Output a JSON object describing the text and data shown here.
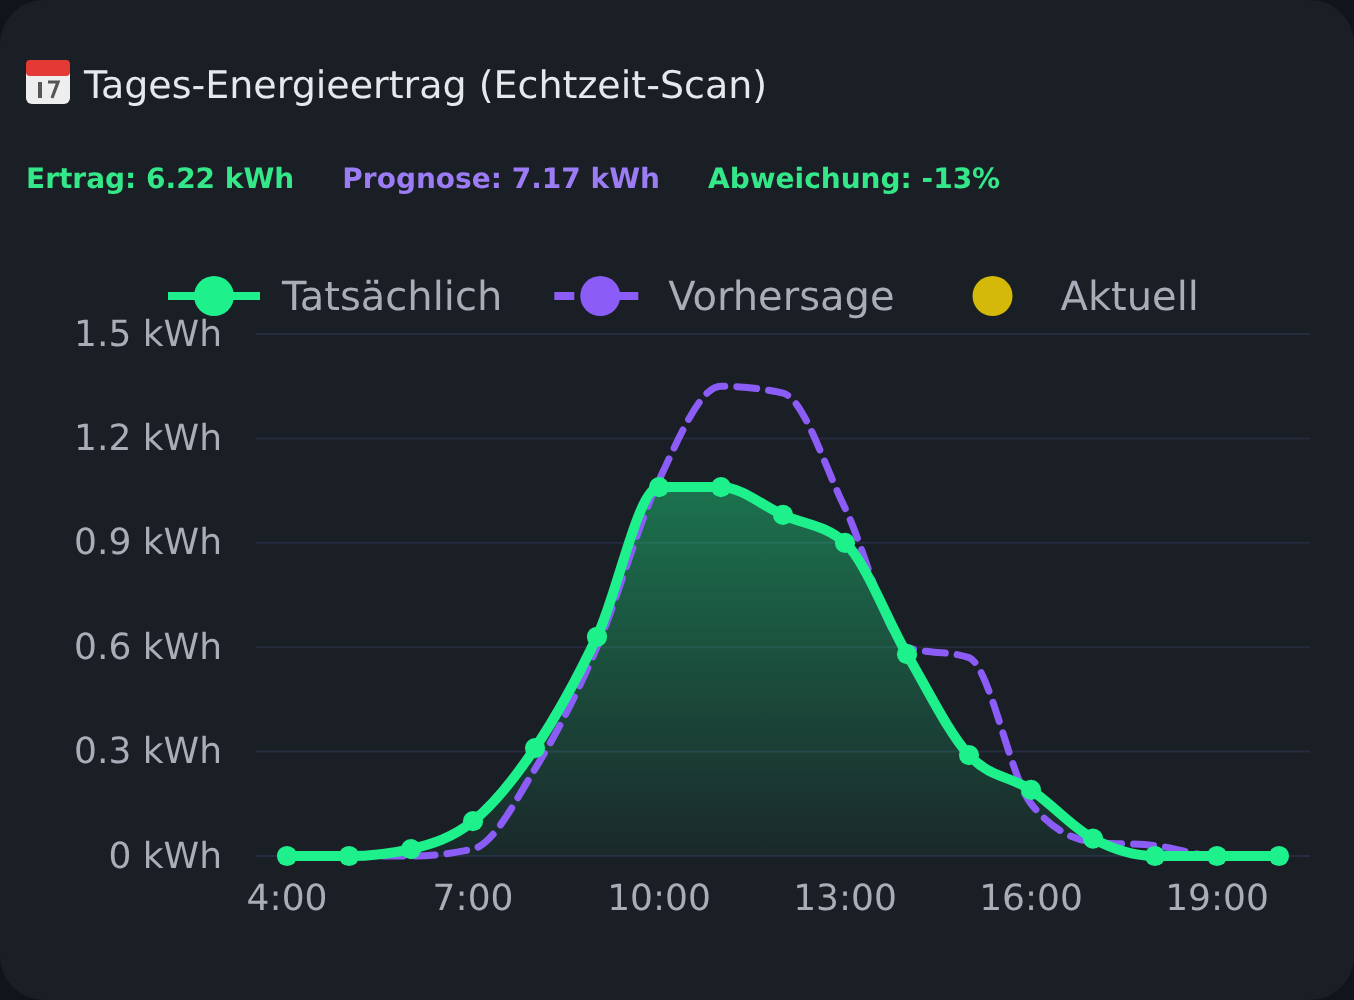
{
  "chart_data": {
    "type": "area",
    "title": "Tages-Energieertrag (Echtzeit-Scan)",
    "annotations": [
      "Ertrag: 6.22 kWh",
      "Prognose: 7.17 kWh",
      "Abweichung: -13%"
    ],
    "x": [
      4,
      5,
      6,
      7,
      8,
      9,
      10,
      11,
      12,
      13,
      14,
      15,
      16,
      17,
      18,
      19,
      20
    ],
    "series": [
      {
        "name": "Tatsächlich",
        "type": "area",
        "color": "#1ef08c",
        "marker": "circle",
        "line_style": "solid",
        "values": [
          0,
          0,
          0.02,
          0.1,
          0.31,
          0.63,
          1.06,
          1.06,
          0.98,
          0.9,
          0.58,
          0.29,
          0.19,
          0.05,
          0,
          0,
          0
        ]
      },
      {
        "name": "Vorhersage",
        "type": "line",
        "color": "#8b5cf6",
        "marker": "none",
        "line_style": "dashed",
        "values": [
          0,
          0,
          0,
          0.02,
          0.25,
          0.6,
          1.08,
          1.35,
          1.33,
          1.0,
          0.6,
          0.57,
          0.15,
          0.04,
          0.03,
          0,
          0
        ]
      },
      {
        "name": "Aktuell",
        "type": "scatter",
        "color": "#d4b80a",
        "marker": "circle",
        "values": [
          null,
          null,
          null,
          null,
          null,
          null,
          null,
          null,
          null,
          null,
          null,
          null,
          null,
          null,
          null,
          null,
          null
        ]
      }
    ],
    "xlim": [
      3.5,
      20.5
    ],
    "xticks": [
      {
        "value": 4,
        "label": "4:00"
      },
      {
        "value": 7,
        "label": "7:00"
      },
      {
        "value": 10,
        "label": "10:00"
      },
      {
        "value": 13,
        "label": "13:00"
      },
      {
        "value": 16,
        "label": "16:00"
      },
      {
        "value": 19,
        "label": "19:00"
      }
    ],
    "ylim": [
      0,
      1.5
    ],
    "yticks": [
      {
        "value": 0,
        "label": "0 kWh"
      },
      {
        "value": 0.3,
        "label": "0.3 kWh"
      },
      {
        "value": 0.6,
        "label": "0.6 kWh"
      },
      {
        "value": 0.9,
        "label": "0.9 kWh"
      },
      {
        "value": 1.2,
        "label": "1.2 kWh"
      },
      {
        "value": 1.5,
        "label": "1.5 kWh"
      }
    ],
    "grid": "y",
    "legend": "top"
  }
}
